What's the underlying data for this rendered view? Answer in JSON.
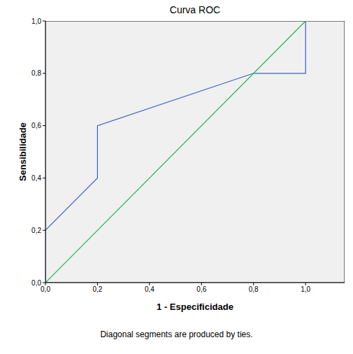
{
  "chart_data": {
    "type": "line",
    "title": "Curva ROC",
    "x_label": "1 - Especificidade",
    "y_label": "Sensibilidade",
    "annotations": [
      "Diagonal segments are produced by ties."
    ],
    "series": [
      {
        "color": "#3d5fc4",
        "x": [
          0,
          0,
          0.2,
          0.2,
          0.8,
          1.0,
          1.0
        ],
        "values": [
          0,
          0.2,
          0.4,
          0.6,
          0.8,
          0.8,
          1.0
        ]
      },
      {
        "color": "#22b04b",
        "x": [
          0,
          1.0
        ],
        "values": [
          0,
          1.0
        ]
      }
    ],
    "xlim": [
      0,
      1.15
    ],
    "ylim": [
      0,
      1.0
    ],
    "xticks": [
      {
        "value": 0,
        "label": "0,0"
      },
      {
        "value": 0.2,
        "label": "0,2"
      },
      {
        "value": 0.4,
        "label": "0,4"
      },
      {
        "value": 0.6,
        "label": "0,6"
      },
      {
        "value": 0.8,
        "label": "0,8"
      },
      {
        "value": 1.0,
        "label": "1,0"
      }
    ],
    "yticks": [
      {
        "value": 0,
        "label": "0,0"
      },
      {
        "value": 0.2,
        "label": "0,2"
      },
      {
        "value": 0.4,
        "label": "0,4"
      },
      {
        "value": 0.6,
        "label": "0,6"
      },
      {
        "value": 0.8,
        "label": "0,8"
      },
      {
        "value": 1.0,
        "label": "1,0"
      }
    ],
    "grid": false
  }
}
